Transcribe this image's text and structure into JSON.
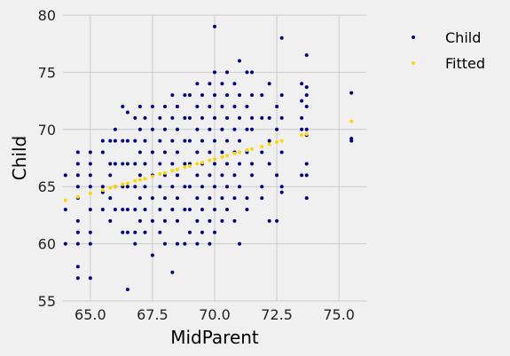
{
  "chart_data": {
    "type": "scatter",
    "xlabel": "MidParent",
    "ylabel": "Child",
    "xlim": [
      63.9,
      76.1
    ],
    "ylim": [
      55,
      80
    ],
    "xticks": [
      65.0,
      67.5,
      70.0,
      72.5,
      75.0
    ],
    "xtick_labels": [
      "65.0",
      "67.5",
      "70.0",
      "72.5",
      "75.0"
    ],
    "yticks": [
      55,
      60,
      65,
      70,
      75,
      80
    ],
    "ytick_labels": [
      "55",
      "60",
      "65",
      "70",
      "75",
      "80"
    ],
    "grid": true,
    "legend_position": "top-right-outside",
    "series": [
      {
        "name": "Child",
        "color": "#000080",
        "points": [
          [
            75.5,
            73.2
          ],
          [
            75.5,
            69.2
          ],
          [
            75.5,
            69.0
          ],
          [
            73.7,
            76.5
          ],
          [
            73.7,
            73.7
          ],
          [
            73.7,
            73.0
          ],
          [
            73.7,
            72.0
          ],
          [
            73.7,
            70.0
          ],
          [
            73.7,
            69.5
          ],
          [
            73.7,
            67.0
          ],
          [
            73.7,
            66.0
          ],
          [
            73.7,
            64.0
          ],
          [
            73.5,
            74.0
          ],
          [
            73.5,
            72.5
          ],
          [
            73.5,
            71.0
          ],
          [
            73.5,
            70.0
          ],
          [
            73.5,
            66.0
          ],
          [
            72.7,
            78.0
          ],
          [
            72.7,
            73.0
          ],
          [
            72.7,
            71.0
          ],
          [
            72.7,
            68.0
          ],
          [
            72.7,
            65.0
          ],
          [
            72.7,
            64.5
          ],
          [
            72.5,
            72.0
          ],
          [
            72.5,
            70.0
          ],
          [
            72.5,
            66.0
          ],
          [
            72.5,
            62.0
          ],
          [
            72.2,
            74.0
          ],
          [
            72.2,
            71.0
          ],
          [
            72.2,
            69.0
          ],
          [
            72.2,
            67.0
          ],
          [
            72.2,
            62.0
          ],
          [
            71.9,
            73.0
          ],
          [
            71.9,
            71.0
          ],
          [
            71.9,
            68.0
          ],
          [
            71.9,
            65.0
          ],
          [
            71.9,
            64.0
          ],
          [
            71.5,
            75.0
          ],
          [
            71.5,
            73.0
          ],
          [
            71.5,
            71.0
          ],
          [
            71.5,
            70.0
          ],
          [
            71.5,
            67.0
          ],
          [
            71.5,
            66.0
          ],
          [
            71.3,
            75.0
          ],
          [
            71.3,
            72.0
          ],
          [
            71.3,
            70.0
          ],
          [
            71.3,
            68.0
          ],
          [
            71.3,
            64.0
          ],
          [
            71.3,
            63.0
          ],
          [
            71.0,
            76.0
          ],
          [
            71.0,
            73.0
          ],
          [
            71.0,
            71.0
          ],
          [
            71.0,
            69.0
          ],
          [
            71.0,
            67.0
          ],
          [
            71.0,
            65.0
          ],
          [
            71.0,
            60.0
          ],
          [
            70.8,
            74.0
          ],
          [
            70.8,
            72.0
          ],
          [
            70.8,
            70.0
          ],
          [
            70.8,
            68.0
          ],
          [
            70.8,
            66.0
          ],
          [
            70.8,
            64.0
          ],
          [
            70.8,
            62.0
          ],
          [
            70.5,
            75.0
          ],
          [
            70.5,
            73.0
          ],
          [
            70.5,
            71.0
          ],
          [
            70.5,
            69.0
          ],
          [
            70.5,
            67.0
          ],
          [
            70.5,
            65.0
          ],
          [
            70.5,
            63.0
          ],
          [
            70.3,
            74.0
          ],
          [
            70.3,
            72.0
          ],
          [
            70.3,
            70.0
          ],
          [
            70.3,
            68.0
          ],
          [
            70.3,
            66.0
          ],
          [
            70.3,
            64.0
          ],
          [
            70.3,
            62.0
          ],
          [
            70.0,
            79.0
          ],
          [
            70.0,
            75.0
          ],
          [
            70.0,
            73.0
          ],
          [
            70.0,
            71.0
          ],
          [
            70.0,
            69.0
          ],
          [
            70.0,
            67.0
          ],
          [
            70.0,
            65.0
          ],
          [
            70.0,
            63.0
          ],
          [
            70.0,
            61.0
          ],
          [
            69.8,
            74.0
          ],
          [
            69.8,
            72.0
          ],
          [
            69.8,
            70.0
          ],
          [
            69.8,
            68.0
          ],
          [
            69.8,
            66.0
          ],
          [
            69.8,
            64.0
          ],
          [
            69.8,
            62.0
          ],
          [
            69.8,
            60.0
          ],
          [
            69.5,
            73.0
          ],
          [
            69.5,
            71.0
          ],
          [
            69.5,
            69.0
          ],
          [
            69.5,
            67.0
          ],
          [
            69.5,
            65.0
          ],
          [
            69.5,
            63.0
          ],
          [
            69.5,
            61.0
          ],
          [
            69.3,
            74.0
          ],
          [
            69.3,
            72.0
          ],
          [
            69.3,
            70.0
          ],
          [
            69.3,
            68.0
          ],
          [
            69.3,
            66.0
          ],
          [
            69.3,
            64.0
          ],
          [
            69.3,
            62.0
          ],
          [
            69.3,
            60.0
          ],
          [
            69.0,
            73.0
          ],
          [
            69.0,
            71.0
          ],
          [
            69.0,
            69.0
          ],
          [
            69.0,
            67.0
          ],
          [
            69.0,
            65.0
          ],
          [
            69.0,
            63.0
          ],
          [
            69.0,
            61.0
          ],
          [
            68.8,
            73.0
          ],
          [
            68.8,
            71.0
          ],
          [
            68.8,
            69.0
          ],
          [
            68.8,
            67.0
          ],
          [
            68.8,
            65.0
          ],
          [
            68.8,
            63.0
          ],
          [
            68.8,
            60.0
          ],
          [
            68.5,
            72.0
          ],
          [
            68.5,
            70.0
          ],
          [
            68.5,
            68.0
          ],
          [
            68.5,
            66.0
          ],
          [
            68.5,
            64.0
          ],
          [
            68.5,
            62.0
          ],
          [
            68.5,
            60.0
          ],
          [
            68.3,
            73.0
          ],
          [
            68.3,
            71.0
          ],
          [
            68.3,
            69.0
          ],
          [
            68.3,
            67.0
          ],
          [
            68.3,
            65.0
          ],
          [
            68.3,
            63.0
          ],
          [
            68.3,
            57.5
          ],
          [
            68.0,
            72.0
          ],
          [
            68.0,
            70.0
          ],
          [
            68.0,
            68.0
          ],
          [
            68.0,
            66.0
          ],
          [
            68.0,
            64.0
          ],
          [
            68.0,
            62.0
          ],
          [
            68.0,
            60.0
          ],
          [
            67.8,
            71.0
          ],
          [
            67.8,
            69.0
          ],
          [
            67.8,
            67.0
          ],
          [
            67.8,
            65.0
          ],
          [
            67.8,
            63.0
          ],
          [
            67.8,
            61.0
          ],
          [
            67.5,
            72.0
          ],
          [
            67.5,
            70.0
          ],
          [
            67.5,
            68.0
          ],
          [
            67.5,
            66.0
          ],
          [
            67.5,
            64.0
          ],
          [
            67.5,
            62.0
          ],
          [
            67.5,
            59.0
          ],
          [
            67.2,
            71.0
          ],
          [
            67.2,
            69.0
          ],
          [
            67.2,
            67.0
          ],
          [
            67.2,
            65.0
          ],
          [
            67.2,
            63.0
          ],
          [
            67.2,
            61.0
          ],
          [
            67.0,
            72.0
          ],
          [
            67.0,
            70.0
          ],
          [
            67.0,
            68.0
          ],
          [
            67.0,
            66.0
          ],
          [
            67.0,
            64.0
          ],
          [
            67.0,
            62.0
          ],
          [
            66.8,
            71.0
          ],
          [
            66.8,
            69.0
          ],
          [
            66.8,
            67.0
          ],
          [
            66.8,
            65.0
          ],
          [
            66.8,
            63.0
          ],
          [
            66.8,
            61.0
          ],
          [
            66.8,
            60.0
          ],
          [
            66.5,
            71.5
          ],
          [
            66.5,
            69.0
          ],
          [
            66.5,
            67.0
          ],
          [
            66.5,
            65.0
          ],
          [
            66.5,
            63.0
          ],
          [
            66.5,
            61.0
          ],
          [
            66.5,
            56.0
          ],
          [
            66.3,
            72.0
          ],
          [
            66.3,
            69.0
          ],
          [
            66.3,
            67.0
          ],
          [
            66.3,
            65.0
          ],
          [
            66.3,
            63.0
          ],
          [
            66.3,
            61.0
          ],
          [
            66.0,
            70.0
          ],
          [
            66.0,
            69.0
          ],
          [
            66.0,
            67.0
          ],
          [
            66.0,
            65.0
          ],
          [
            66.0,
            63.0
          ],
          [
            65.8,
            69.0
          ],
          [
            65.8,
            67.0
          ],
          [
            65.8,
            66.0
          ],
          [
            65.8,
            64.0
          ],
          [
            65.8,
            62.0
          ],
          [
            65.5,
            69.0
          ],
          [
            65.5,
            68.0
          ],
          [
            65.5,
            65.0
          ],
          [
            65.5,
            64.5
          ],
          [
            65.5,
            63.0
          ],
          [
            65.0,
            68.0
          ],
          [
            65.0,
            67.0
          ],
          [
            65.0,
            66.0
          ],
          [
            65.0,
            65.0
          ],
          [
            65.0,
            63.0
          ],
          [
            65.0,
            61.0
          ],
          [
            65.0,
            60.0
          ],
          [
            65.0,
            57.0
          ],
          [
            64.5,
            68.0
          ],
          [
            64.5,
            67.0
          ],
          [
            64.5,
            66.0
          ],
          [
            64.5,
            65.0
          ],
          [
            64.5,
            64.0
          ],
          [
            64.5,
            62.0
          ],
          [
            64.5,
            61.0
          ],
          [
            64.5,
            60.0
          ],
          [
            64.5,
            58.0
          ],
          [
            64.5,
            57.0
          ],
          [
            64.0,
            66.0
          ],
          [
            64.0,
            63.0
          ],
          [
            64.0,
            60.0
          ]
        ]
      },
      {
        "name": "Fitted",
        "color": "#ffd700",
        "points": [
          [
            64.0,
            63.8
          ],
          [
            64.5,
            64.1
          ],
          [
            65.0,
            64.4
          ],
          [
            65.5,
            64.7
          ],
          [
            65.8,
            64.9
          ],
          [
            66.0,
            65.0
          ],
          [
            66.3,
            65.2
          ],
          [
            66.5,
            65.3
          ],
          [
            66.8,
            65.5
          ],
          [
            67.0,
            65.6
          ],
          [
            67.2,
            65.7
          ],
          [
            67.5,
            65.9
          ],
          [
            67.8,
            66.1
          ],
          [
            68.0,
            66.2
          ],
          [
            68.3,
            66.4
          ],
          [
            68.5,
            66.5
          ],
          [
            68.8,
            66.7
          ],
          [
            69.0,
            66.8
          ],
          [
            69.3,
            67.0
          ],
          [
            69.5,
            67.1
          ],
          [
            69.8,
            67.3
          ],
          [
            70.0,
            67.4
          ],
          [
            70.3,
            67.6
          ],
          [
            70.5,
            67.7
          ],
          [
            70.8,
            67.9
          ],
          [
            71.0,
            68.0
          ],
          [
            71.3,
            68.2
          ],
          [
            71.5,
            68.3
          ],
          [
            71.9,
            68.5
          ],
          [
            72.2,
            68.7
          ],
          [
            72.5,
            68.9
          ],
          [
            72.7,
            69.0
          ],
          [
            73.5,
            69.5
          ],
          [
            73.7,
            69.6
          ],
          [
            75.5,
            70.7
          ]
        ]
      }
    ]
  }
}
